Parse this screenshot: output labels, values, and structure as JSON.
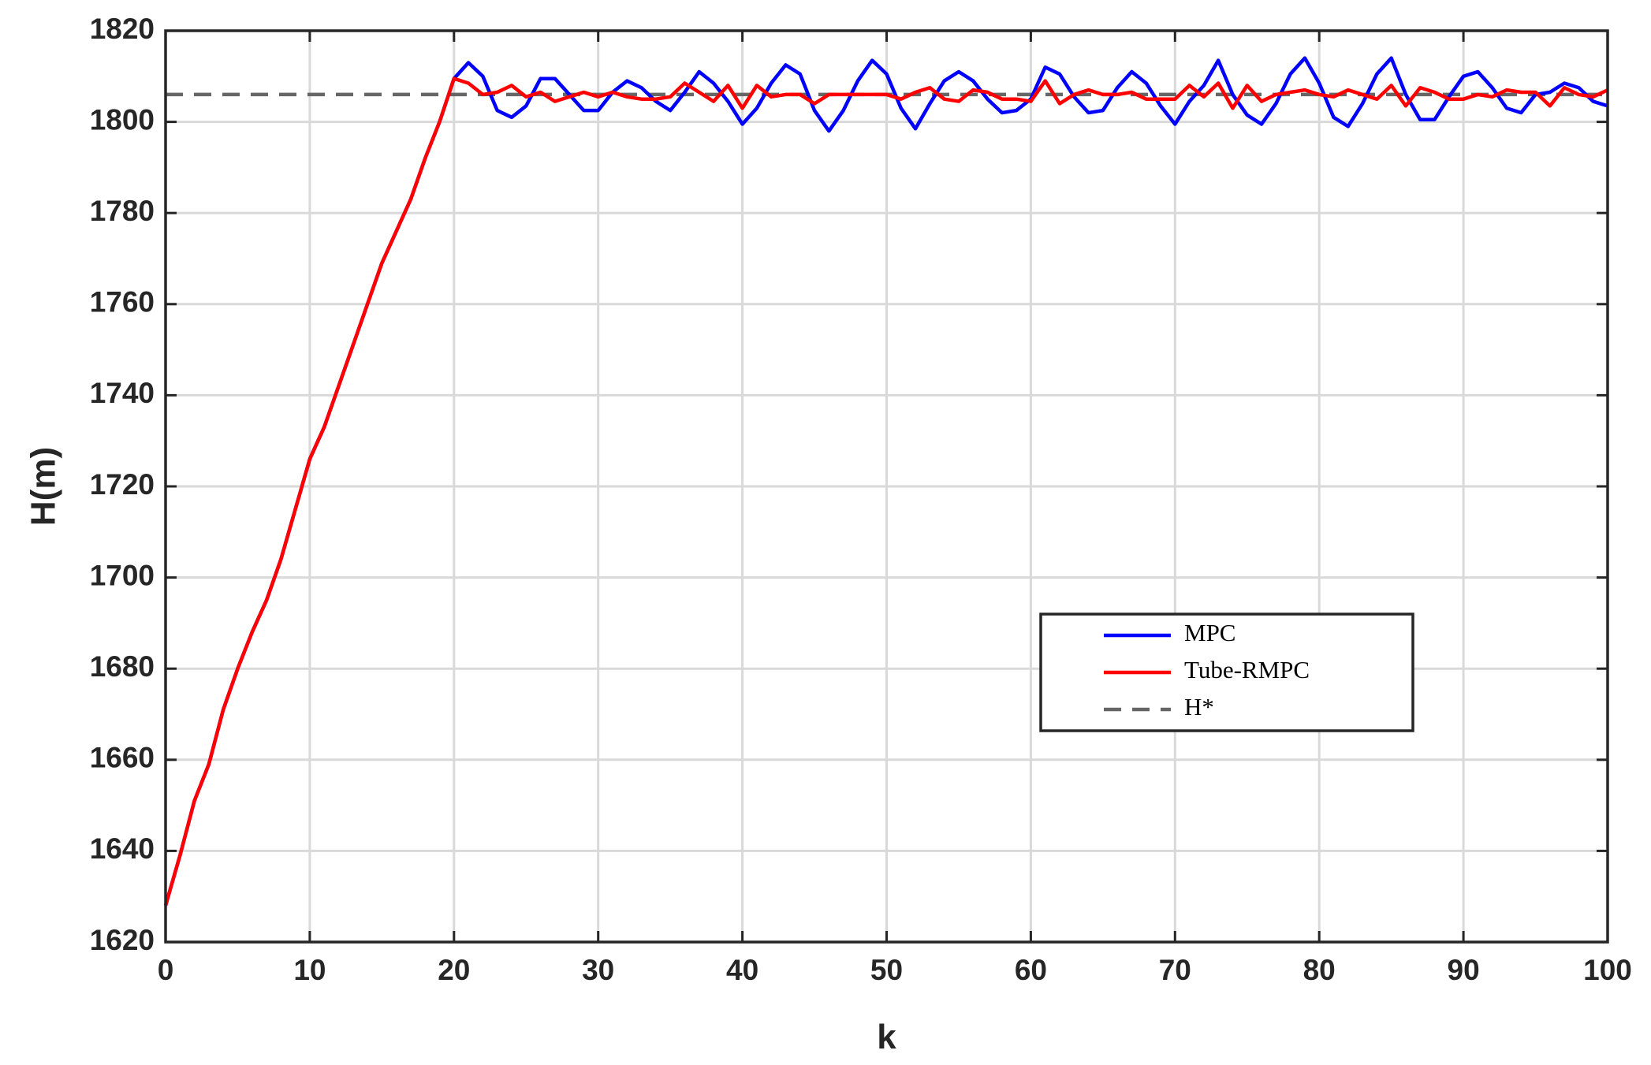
{
  "chart_data": {
    "type": "line",
    "xlabel": "k",
    "ylabel": "H(m)",
    "x": [
      0,
      1,
      2,
      3,
      4,
      5,
      6,
      7,
      8,
      9,
      10,
      11,
      12,
      13,
      14,
      15,
      16,
      17,
      18,
      19,
      20,
      21,
      22,
      23,
      24,
      25,
      26,
      27,
      28,
      29,
      30,
      31,
      32,
      33,
      34,
      35,
      36,
      37,
      38,
      39,
      40,
      41,
      42,
      43,
      44,
      45,
      46,
      47,
      48,
      49,
      50,
      51,
      52,
      53,
      54,
      55,
      56,
      57,
      58,
      59,
      60,
      61,
      62,
      63,
      64,
      65,
      66,
      67,
      68,
      69,
      70,
      71,
      72,
      73,
      74,
      75,
      76,
      77,
      78,
      79,
      80,
      81,
      82,
      83,
      84,
      85,
      86,
      87,
      88,
      89,
      90,
      91,
      92,
      93,
      94,
      95,
      96,
      97,
      98,
      99,
      100
    ],
    "series": [
      {
        "name": "MPC",
        "color": "#0000ff",
        "values": [
          1628,
          1639,
          1651,
          1659,
          1671,
          1680,
          1688,
          1695,
          1704,
          1715,
          1726,
          1733,
          1742,
          1751,
          1760,
          1769,
          1776,
          1783,
          1792,
          1800,
          1809.5,
          1813,
          1810,
          1802.5,
          1801,
          1803.5,
          1809.5,
          1809.5,
          1806,
          1802.5,
          1802.5,
          1806.5,
          1809,
          1807.5,
          1804.5,
          1802.5,
          1806.5,
          1811,
          1808.5,
          1804.5,
          1799.5,
          1803,
          1808.5,
          1812.5,
          1810.5,
          1802.5,
          1798,
          1802.5,
          1809,
          1813.5,
          1810.5,
          1803,
          1798.5,
          1804,
          1809,
          1811,
          1809,
          1805,
          1802,
          1802.5,
          1805,
          1812,
          1810.5,
          1805.5,
          1802,
          1802.5,
          1807.5,
          1811,
          1808.5,
          1803.5,
          1799.5,
          1804.5,
          1808,
          1813.5,
          1806,
          1801.5,
          1799.5,
          1804,
          1810.5,
          1814,
          1808.5,
          1801,
          1799,
          1804,
          1810.5,
          1814,
          1806,
          1800.5,
          1800.5,
          1805.5,
          1810,
          1811,
          1807.5,
          1803,
          1802,
          1806,
          1806.5,
          1808.5,
          1807.5,
          1804.5,
          1803.5
        ]
      },
      {
        "name": "Tube-RMPC",
        "color": "#ff0000",
        "values": [
          1628,
          1639,
          1651,
          1659,
          1671,
          1680,
          1688,
          1695,
          1704,
          1715,
          1726,
          1733,
          1742,
          1751,
          1760,
          1769,
          1776,
          1783,
          1792,
          1800,
          1809.5,
          1808.5,
          1806,
          1806.5,
          1808,
          1805.5,
          1806.5,
          1804.5,
          1805.5,
          1806.5,
          1805.5,
          1806.5,
          1805.5,
          1805,
          1805,
          1805.5,
          1808.5,
          1806.5,
          1804.5,
          1808,
          1803,
          1808,
          1805.5,
          1806,
          1806,
          1804,
          1806,
          1806,
          1806,
          1806,
          1806,
          1805,
          1806.5,
          1807.5,
          1805,
          1804.5,
          1807,
          1806.5,
          1805,
          1805,
          1804.5,
          1809,
          1804,
          1806,
          1807,
          1806,
          1806,
          1806.5,
          1805,
          1805,
          1805,
          1808,
          1805.5,
          1808.5,
          1803,
          1808,
          1804.5,
          1806,
          1806.5,
          1807,
          1806,
          1805.5,
          1807,
          1806,
          1805,
          1808,
          1803.5,
          1807.5,
          1806.5,
          1805,
          1805,
          1806,
          1805.5,
          1807,
          1806.5,
          1806.5,
          1803.5,
          1807.5,
          1806,
          1805.5,
          1807
        ]
      }
    ],
    "hline": {
      "name": "H*",
      "value": 1806,
      "color": "#666666",
      "dashed": true
    },
    "xlim": [
      0,
      100
    ],
    "xticks": [
      0,
      10,
      20,
      30,
      40,
      50,
      60,
      70,
      80,
      90,
      100
    ],
    "ylim": [
      1620,
      1820
    ],
    "yticks": [
      1620,
      1640,
      1660,
      1680,
      1700,
      1720,
      1740,
      1760,
      1780,
      1800,
      1820
    ],
    "grid": true
  }
}
